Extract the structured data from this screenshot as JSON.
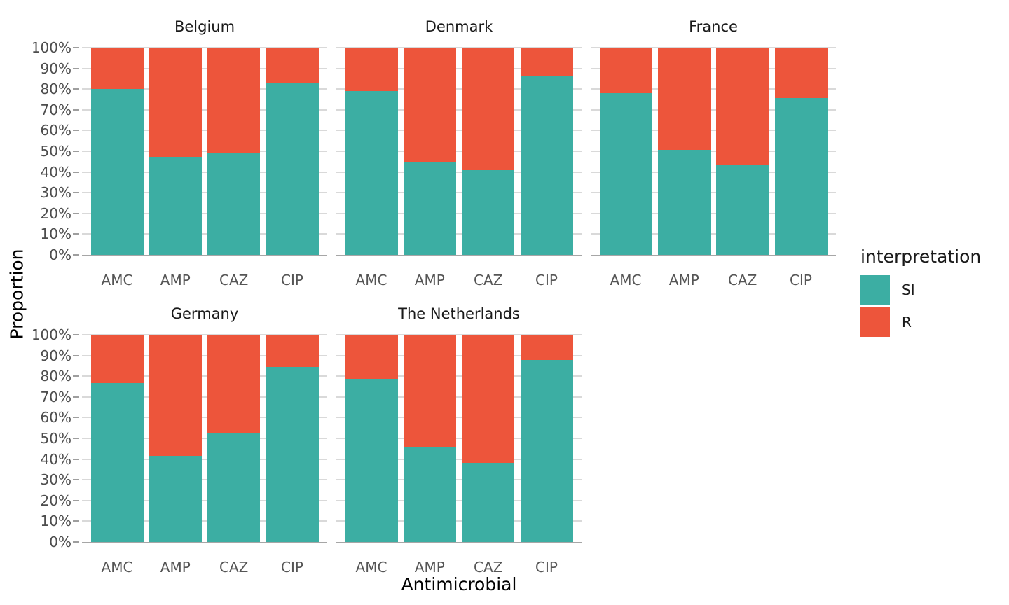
{
  "chart_data": {
    "type": "bar",
    "stacked": true,
    "percent": true,
    "xlabel": "Antimicrobial",
    "ylabel": "Proportion",
    "categories": [
      "AMC",
      "AMP",
      "CAZ",
      "CIP"
    ],
    "y_ticks": [
      "0%",
      "10%",
      "20%",
      "30%",
      "40%",
      "50%",
      "60%",
      "70%",
      "80%",
      "90%",
      "100%"
    ],
    "ylim": [
      0,
      100
    ],
    "grid": "horizontal-major-only",
    "colors": {
      "SI": "#3CAEA3",
      "R": "#ED553B"
    },
    "legend": {
      "title": "interpretation",
      "position": "right",
      "items": [
        {
          "label": "SI",
          "color": "#3CAEA3"
        },
        {
          "label": "R",
          "color": "#ED553B"
        }
      ]
    },
    "facets": [
      {
        "title": "Belgium",
        "series": [
          {
            "name": "SI",
            "values": [
              80.0,
              47.4,
              48.9,
              83.2
            ]
          },
          {
            "name": "R",
            "values": [
              20.0,
              52.6,
              51.1,
              16.8
            ]
          }
        ]
      },
      {
        "title": "Denmark",
        "series": [
          {
            "name": "SI",
            "values": [
              79.2,
              44.6,
              40.8,
              86.2
            ]
          },
          {
            "name": "R",
            "values": [
              20.8,
              55.4,
              59.2,
              13.8
            ]
          }
        ]
      },
      {
        "title": "France",
        "series": [
          {
            "name": "SI",
            "values": [
              78.0,
              50.6,
              43.4,
              75.6
            ]
          },
          {
            "name": "R",
            "values": [
              22.0,
              49.4,
              56.6,
              24.4
            ]
          }
        ]
      },
      {
        "title": "Germany",
        "series": [
          {
            "name": "SI",
            "values": [
              76.6,
              41.5,
              52.3,
              84.4
            ]
          },
          {
            "name": "R",
            "values": [
              23.4,
              58.5,
              47.7,
              15.6
            ]
          }
        ]
      },
      {
        "title": "The Netherlands",
        "series": [
          {
            "name": "SI",
            "values": [
              78.6,
              46.0,
              38.3,
              87.7
            ]
          },
          {
            "name": "R",
            "values": [
              21.4,
              54.0,
              61.7,
              12.3
            ]
          }
        ]
      }
    ]
  }
}
